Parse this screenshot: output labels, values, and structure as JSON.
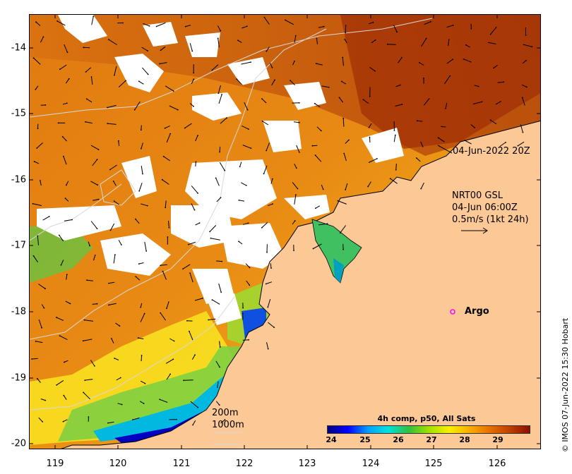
{
  "map": {
    "colors": {
      "land": "#fbc896",
      "cloud": "#ffffff",
      "coast": "#000000",
      "bathymetry": "#d0d0d0"
    },
    "y_axis_labels": [
      "-14",
      "-15",
      "-16",
      "-17",
      "-18",
      "-19",
      "-20"
    ],
    "x_axis_labels": [
      "119",
      "120",
      "121",
      "122",
      "123",
      "124",
      "125",
      "126"
    ],
    "lat_range": [
      -20.15,
      -13.5
    ],
    "lon_range": [
      118.6,
      126.7
    ]
  },
  "annotations": {
    "timestamp": "04-Jun-2022 20Z",
    "current_product": "NRT00 GSL",
    "current_time": "04-Jun 06:00Z",
    "current_scale": "0.5m/s (1kt 24h)",
    "argo_label": "Argo",
    "depth_200": "200m",
    "depth_1000": "1000m",
    "credit": "© IMOS 07-Jun-2022 15:30 Hobart"
  },
  "colorbar": {
    "title": "4h comp, p50, All Sats",
    "labels": [
      "24",
      "25",
      "26",
      "27",
      "28",
      "29"
    ],
    "min": 23.6,
    "max": 29.9,
    "stops": [
      "#000080",
      "#0000ff",
      "#00a0ff",
      "#00e0e0",
      "#30c040",
      "#a0e000",
      "#f8f000",
      "#f8b000",
      "#e87000",
      "#c04000",
      "#8a1000"
    ]
  },
  "argo_marker_color": "#ff00ff"
}
